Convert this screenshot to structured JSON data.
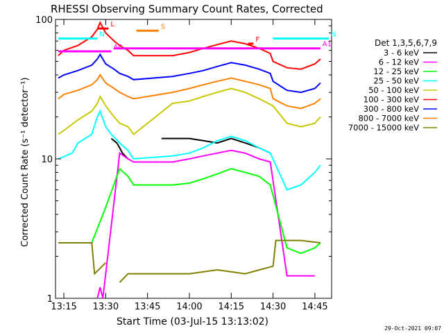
{
  "chart_data": {
    "type": "line",
    "title": "RHESSI Observing Summary Count Rates, Corrected",
    "xlabel": "Start Time (03-Jul-15 13:13:02)",
    "ylabel": "Corrected Count Rate (s⁻¹ detector⁻¹)",
    "y_scale": "log",
    "ylim": [
      1,
      100
    ],
    "xlim": [
      "13:12",
      "14:51"
    ],
    "x_ticks": [
      "13:15",
      "13:30",
      "13:45",
      "14:00",
      "14:15",
      "14:30",
      "14:45"
    ],
    "y_ticks": [
      "1",
      "10",
      "100"
    ],
    "timestamp": "29-Oct-2021 09:07",
    "legend_title": "Det 1,3,5,6,7,9",
    "legend_position": "right",
    "series": [
      {
        "name": "3 - 6 keV",
        "color": "#000000",
        "x": [
          "13:12",
          "13:25",
          "13:30",
          "13:32",
          "13:34",
          "13:35",
          "13:36",
          "13:38",
          "13:40",
          "13:45",
          "13:50",
          "13:55",
          "14:00",
          "14:05",
          "14:10",
          "14:15",
          "14:20",
          "14:25",
          "14:29"
        ],
        "values": [
          null,
          null,
          null,
          14,
          13,
          12,
          11,
          10,
          null,
          null,
          14,
          14,
          14,
          13.5,
          13,
          14,
          13,
          12,
          11
        ]
      },
      {
        "name": "6 - 12 keV",
        "color": "#ff00ff",
        "x": [
          "13:27",
          "13:28",
          "13:29",
          "13:35",
          "13:38",
          "13:40",
          "13:54",
          "14:00",
          "14:05",
          "14:10",
          "14:15",
          "14:20",
          "14:25",
          "14:29",
          "14:35",
          "14:40",
          "14:45"
        ],
        "values": [
          1,
          1.2,
          1,
          11,
          10,
          9.5,
          9.5,
          10,
          10.5,
          11,
          11.5,
          11,
          10,
          9.5,
          1.45,
          1.45,
          1.45
        ]
      },
      {
        "name": "12 - 25 keV",
        "color": "#00ff00",
        "x": [
          "13:15",
          "13:25",
          "13:30",
          "13:35",
          "13:38",
          "13:40",
          "13:54",
          "14:00",
          "14:05",
          "14:10",
          "14:15",
          "14:20",
          "14:25",
          "14:29",
          "14:35",
          "14:40",
          "14:45",
          "14:47"
        ],
        "values": [
          null,
          2.5,
          4.5,
          8.5,
          7.5,
          6.5,
          6.5,
          6.7,
          7.2,
          7.8,
          8.5,
          8,
          7.5,
          6.5,
          2.3,
          2.1,
          2.3,
          2.5
        ]
      },
      {
        "name": "25 - 50 keV",
        "color": "#00ffff",
        "x": [
          "13:13",
          "13:18",
          "13:20",
          "13:25",
          "13:27",
          "13:28",
          "13:30",
          "13:32",
          "13:35",
          "13:38",
          "13:40",
          "13:54",
          "14:00",
          "14:05",
          "14:10",
          "14:15",
          "14:20",
          "14:25",
          "14:29",
          "14:35",
          "14:40",
          "14:45",
          "14:47"
        ],
        "values": [
          10,
          11,
          13,
          15,
          20,
          22,
          17,
          15,
          13,
          11.5,
          10,
          10.5,
          11,
          12,
          13.5,
          14.5,
          13.5,
          12,
          11,
          6,
          6.5,
          8,
          9
        ]
      },
      {
        "name": "50 - 100 keV",
        "color": "#c8c800",
        "x": [
          "13:13",
          "13:15",
          "13:20",
          "13:25",
          "13:27",
          "13:28",
          "13:30",
          "13:33",
          "13:35",
          "13:38",
          "13:40",
          "13:54",
          "14:00",
          "14:05",
          "14:10",
          "14:15",
          "14:20",
          "14:25",
          "14:30",
          "14:35",
          "14:40",
          "14:45",
          "14:47"
        ],
        "values": [
          15,
          16,
          19,
          22,
          25,
          28,
          24,
          20,
          18,
          17,
          15,
          25,
          26,
          28,
          30,
          32,
          30,
          27,
          24,
          18,
          17,
          18,
          20
        ]
      },
      {
        "name": "100 - 300 keV",
        "color": "#ff0000",
        "x": [
          "13:13",
          "13:15",
          "13:20",
          "13:25",
          "13:27",
          "13:28",
          "13:30",
          "13:33",
          "13:35",
          "13:38",
          "13:40",
          "13:54",
          "14:00",
          "14:05",
          "14:10",
          "14:15",
          "14:20",
          "14:25",
          "14:29",
          "14:30",
          "14:35",
          "14:40",
          "14:45",
          "14:47"
        ],
        "values": [
          55,
          60,
          65,
          75,
          85,
          95,
          80,
          70,
          65,
          60,
          55,
          55,
          58,
          62,
          66,
          70,
          67,
          62,
          57,
          50,
          45,
          44,
          48,
          52
        ]
      },
      {
        "name": "300 - 800 keV",
        "color": "#0000ff",
        "x": [
          "13:13",
          "13:15",
          "13:20",
          "13:25",
          "13:27",
          "13:28",
          "13:30",
          "13:33",
          "13:35",
          "13:38",
          "13:40",
          "13:54",
          "14:00",
          "14:05",
          "14:10",
          "14:15",
          "14:20",
          "14:25",
          "14:29",
          "14:30",
          "14:35",
          "14:40",
          "14:45",
          "14:47"
        ],
        "values": [
          38,
          40,
          43,
          47,
          52,
          56,
          48,
          44,
          41,
          39,
          37,
          39,
          41,
          43,
          46,
          49,
          47,
          44,
          41,
          36,
          31,
          30,
          32,
          35
        ]
      },
      {
        "name": "800 - 7000 keV",
        "color": "#ff8000",
        "x": [
          "13:13",
          "13:15",
          "13:20",
          "13:25",
          "13:27",
          "13:28",
          "13:30",
          "13:33",
          "13:35",
          "13:38",
          "13:40",
          "13:54",
          "14:00",
          "14:05",
          "14:10",
          "14:15",
          "14:20",
          "14:25",
          "14:29",
          "14:30",
          "14:35",
          "14:40",
          "14:45",
          "14:47"
        ],
        "values": [
          27,
          29,
          31,
          34,
          37,
          40,
          35,
          32,
          30,
          28,
          27,
          30,
          32,
          34,
          36,
          38,
          36,
          34,
          32,
          27,
          24,
          23,
          25,
          27
        ]
      },
      {
        "name": "7000 - 15000 keV",
        "color": "#808000",
        "x": [
          "13:13",
          "13:20",
          "13:25",
          "13:26",
          "13:30",
          "13:34",
          "13:35",
          "13:38",
          "13:54",
          "14:00",
          "14:10",
          "14:20",
          "14:30",
          "14:31",
          "14:40",
          "14:47"
        ],
        "values": [
          2.5,
          2.5,
          2.5,
          1.5,
          1.8,
          null,
          1.3,
          1.5,
          1.5,
          1.5,
          1.6,
          1.5,
          1.7,
          2.6,
          2.6,
          2.5
        ]
      }
    ],
    "annotations": [
      {
        "label": "N",
        "x_start": "13:13",
        "x_end": "13:27",
        "y": 73,
        "color": "#00ffff"
      },
      {
        "label": "S",
        "x_start": "13:41",
        "x_end": "13:49",
        "y": 83,
        "color": "#ff8000"
      },
      {
        "label": "A0",
        "x_start": "13:13",
        "x_end": "13:32",
        "y": 59,
        "color": "#ff00ff"
      },
      {
        "label": "A1",
        "x_start": "13:33",
        "x_end": "14:47",
        "y": 62,
        "color": "#ff00ff"
      },
      {
        "label": "F",
        "x_start": "14:21",
        "x_end": "14:23",
        "y": 67,
        "color": "#ff0000"
      },
      {
        "label": "N",
        "x_start": "14:30",
        "x_end": "14:50",
        "y": 73,
        "color": "#00ffff"
      },
      {
        "label": "L",
        "x_start": "13:27",
        "x_end": "13:31",
        "y": 86,
        "color": "#ff0000"
      }
    ]
  }
}
